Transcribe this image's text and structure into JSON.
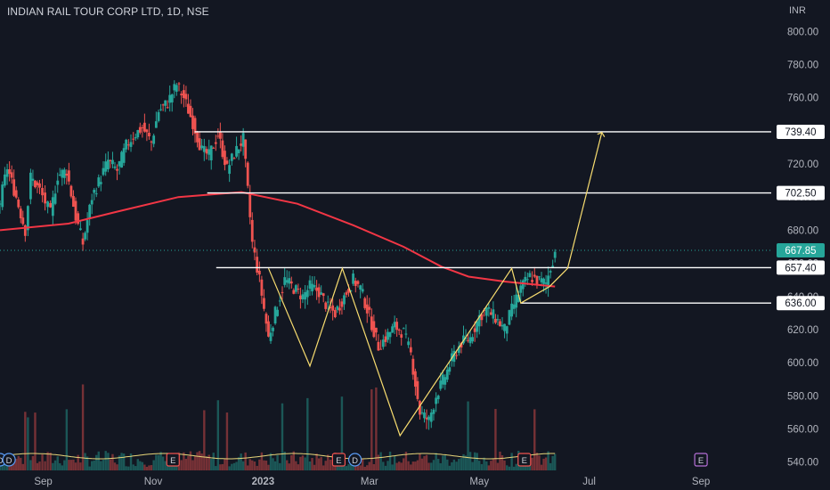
{
  "chart_data": {
    "type": "candlestick",
    "title": "INDIAN RAIL TOUR CORP LTD, 1D, NSE",
    "currency": "INR",
    "ylim": [
      535,
      805
    ],
    "y_ticks": [
      "540.00",
      "560.00",
      "580.00",
      "600.00",
      "620.00",
      "640.00",
      "660.00",
      "680.00",
      "700.00",
      "720.00",
      "740.00",
      "760.00",
      "780.00",
      "800.00"
    ],
    "x_labels": [
      {
        "label": "Sep",
        "date": "2022-09-01"
      },
      {
        "label": "Nov",
        "date": "2022-11-01"
      },
      {
        "label": "2023",
        "date": "2023-01-01",
        "bold": true
      },
      {
        "label": "Mar",
        "date": "2023-03-01"
      },
      {
        "label": "May",
        "date": "2023-05-01"
      },
      {
        "label": "Jul",
        "date": "2023-07-01"
      },
      {
        "label": "Sep",
        "date": "2023-09-01"
      }
    ],
    "x_domain": [
      "2022-08-08",
      "2023-10-10"
    ],
    "last_price": "667.85",
    "price_levels": [
      {
        "value": 739.4,
        "label": "739.40",
        "start": "2022-11-24"
      },
      {
        "value": 702.5,
        "label": "702.50",
        "start": "2022-12-01"
      },
      {
        "value": 657.4,
        "label": "657.40",
        "start": "2022-12-06"
      },
      {
        "value": 636.0,
        "label": "636.00",
        "start": "2023-05-24"
      }
    ],
    "candles": [
      [
        "2022-08-08",
        697
      ],
      [
        "2022-08-12",
        718
      ],
      [
        "2022-08-17",
        700
      ],
      [
        "2022-08-22",
        680
      ],
      [
        "2022-08-25",
        712
      ],
      [
        "2022-08-30",
        704
      ],
      [
        "2022-09-05",
        690
      ],
      [
        "2022-09-09",
        713
      ],
      [
        "2022-09-14",
        716
      ],
      [
        "2022-09-19",
        688
      ],
      [
        "2022-09-23",
        672
      ],
      [
        "2022-09-28",
        700
      ],
      [
        "2022-10-03",
        712
      ],
      [
        "2022-10-07",
        722
      ],
      [
        "2022-10-12",
        716
      ],
      [
        "2022-10-17",
        731
      ],
      [
        "2022-10-21",
        737
      ],
      [
        "2022-10-26",
        742
      ],
      [
        "2022-10-31",
        733
      ],
      [
        "2022-11-04",
        752
      ],
      [
        "2022-11-09",
        757
      ],
      [
        "2022-11-14",
        768
      ],
      [
        "2022-11-18",
        760
      ],
      [
        "2022-11-23",
        745
      ],
      [
        "2022-11-28",
        728
      ],
      [
        "2022-12-02",
        725
      ],
      [
        "2022-12-07",
        738
      ],
      [
        "2022-12-12",
        717
      ],
      [
        "2022-12-16",
        726
      ],
      [
        "2022-12-21",
        735
      ],
      [
        "2022-12-26",
        672
      ],
      [
        "2022-12-30",
        650
      ],
      [
        "2023-01-04",
        615
      ],
      [
        "2023-01-09",
        635
      ],
      [
        "2023-01-13",
        650
      ],
      [
        "2023-01-18",
        645
      ],
      [
        "2023-01-23",
        640
      ],
      [
        "2023-01-27",
        646
      ],
      [
        "2023-02-01",
        643
      ],
      [
        "2023-02-06",
        633
      ],
      [
        "2023-02-10",
        630
      ],
      [
        "2023-02-15",
        640
      ],
      [
        "2023-02-20",
        650
      ],
      [
        "2023-02-24",
        645
      ],
      [
        "2023-03-01",
        628
      ],
      [
        "2023-03-06",
        610
      ],
      [
        "2023-03-10",
        615
      ],
      [
        "2023-03-15",
        622
      ],
      [
        "2023-03-20",
        618
      ],
      [
        "2023-03-24",
        605
      ],
      [
        "2023-03-29",
        570
      ],
      [
        "2023-04-03",
        565
      ],
      [
        "2023-04-07",
        580
      ],
      [
        "2023-04-12",
        592
      ],
      [
        "2023-04-17",
        605
      ],
      [
        "2023-04-21",
        612
      ],
      [
        "2023-04-26",
        615
      ],
      [
        "2023-05-01",
        628
      ],
      [
        "2023-05-05",
        632
      ],
      [
        "2023-05-10",
        627
      ],
      [
        "2023-05-15",
        620
      ],
      [
        "2023-05-19",
        632
      ],
      [
        "2023-05-24",
        645
      ],
      [
        "2023-05-29",
        652
      ],
      [
        "2023-06-02",
        650
      ],
      [
        "2023-06-07",
        648
      ],
      [
        "2023-06-12",
        667
      ]
    ],
    "pattern_path": [
      [
        "2023-01-04",
        657
      ],
      [
        "2023-01-27",
        598
      ],
      [
        "2023-02-14",
        657
      ],
      [
        "2023-03-18",
        556
      ],
      [
        "2023-05-19",
        657
      ],
      [
        "2023-05-24",
        636
      ],
      [
        "2023-06-09",
        646
      ],
      [
        "2023-06-19",
        657
      ],
      [
        "2023-07-08",
        739
      ]
    ],
    "ma_path": [
      [
        "2022-08-08",
        680
      ],
      [
        "2022-09-15",
        684
      ],
      [
        "2022-10-15",
        692
      ],
      [
        "2022-11-15",
        700
      ],
      [
        "2022-12-20",
        703
      ],
      [
        "2023-01-20",
        696
      ],
      [
        "2023-02-20",
        683
      ],
      [
        "2023-03-20",
        670
      ],
      [
        "2023-04-10",
        658
      ],
      [
        "2023-04-25",
        652
      ],
      [
        "2023-05-15",
        649
      ],
      [
        "2023-06-12",
        646
      ]
    ],
    "events": [
      {
        "label": "D",
        "date": "2022-08-08"
      },
      {
        "label": "D",
        "date": "2022-08-13"
      },
      {
        "label": "E",
        "date": "2022-11-12"
      },
      {
        "label": "E",
        "date": "2023-02-12"
      },
      {
        "label": "D",
        "date": "2023-02-21"
      },
      {
        "label": "E",
        "date": "2023-05-26"
      },
      {
        "label": "E",
        "date": "2023-09-01"
      }
    ],
    "colors": {
      "up": "#26a69a",
      "down": "#ef5350",
      "ma": "#f23645",
      "pattern": "#f7dc6f",
      "price_line": "#26a69a",
      "level": "#ffffff"
    }
  }
}
